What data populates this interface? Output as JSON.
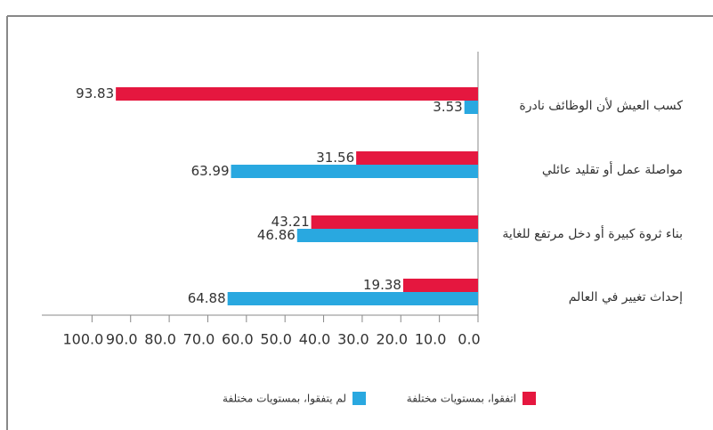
{
  "chart_data": {
    "type": "hbar",
    "categories": [
      "كسب العيش لأن الوظائف نادرة",
      "مواصلة عمل أو تقليد عائلي",
      "بناء ثروة كبيرة أو دخل مرتفع للغاية",
      "إحداث تغيير في العالم"
    ],
    "series": [
      {
        "name": "اتفقوا، بمستويات مختلفة",
        "color": "#e5173f",
        "values": [
          93.83,
          31.56,
          43.21,
          19.38
        ]
      },
      {
        "name": "لم يتفقوا، بمستويات مختلفة",
        "color": "#29a8e0",
        "values": [
          3.53,
          63.99,
          46.86,
          64.88
        ]
      }
    ],
    "xlim": [
      0,
      113
    ],
    "xticks": [
      {
        "value": 0,
        "label": "0.0"
      },
      {
        "value": 10,
        "label": "10.0"
      },
      {
        "value": 20,
        "label": "20.0"
      },
      {
        "value": 30,
        "label": "30.0"
      },
      {
        "value": 40,
        "label": "40.0"
      },
      {
        "value": 50,
        "label": "50.0"
      },
      {
        "value": 60,
        "label": "60.0"
      },
      {
        "value": 70,
        "label": "70.0"
      },
      {
        "value": 80,
        "label": "80.0"
      },
      {
        "value": 90,
        "label": "90.0"
      },
      {
        "value": 100,
        "label": "100.0"
      }
    ],
    "legend": "bottom"
  }
}
